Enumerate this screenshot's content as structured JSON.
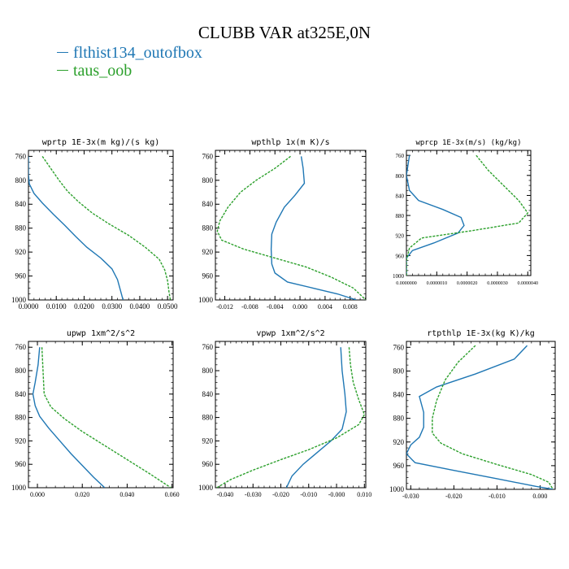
{
  "figure_title": "CLUBB VAR at325E,0N",
  "colors": {
    "blue": "#1f77b4",
    "green": "#2ca02c",
    "axis": "#000000"
  },
  "legend": [
    {
      "label": "flthist134_outofbox",
      "color": "#1f77b4",
      "dashed": false
    },
    {
      "label": "taus_oob",
      "color": "#2ca02c",
      "dashed": true
    }
  ],
  "chart_data": [
    {
      "type": "line",
      "title": "wprtp  1E-3x(m kg)/(s kg)",
      "xlim": [
        0.0,
        0.052
      ],
      "ylim": [
        1000,
        750
      ],
      "y_reversed": true,
      "x_ticks": [
        0.0,
        0.01,
        0.02,
        0.03,
        0.04,
        0.05
      ],
      "x_tick_labels": [
        "0.0000",
        "0.0100",
        "0.0200",
        "0.0300",
        "0.0400",
        "0.0500"
      ],
      "y_ticks": [
        760,
        800,
        840,
        880,
        920,
        960,
        1000
      ],
      "series": [
        {
          "name": "flthist134_outofbox",
          "color": "#1f77b4",
          "dashed": false,
          "points": [
            [
              0.0,
              760
            ],
            [
              0.0,
              790
            ],
            [
              0.0003,
              806
            ],
            [
              0.002,
              822
            ],
            [
              0.005,
              838
            ],
            [
              0.009,
              857
            ],
            [
              0.013,
              875
            ],
            [
              0.017,
              894
            ],
            [
              0.021,
              912
            ],
            [
              0.026,
              930
            ],
            [
              0.03,
              948
            ],
            [
              0.032,
              966
            ],
            [
              0.033,
              983
            ],
            [
              0.034,
              1000
            ]
          ]
        },
        {
          "name": "taus_oob",
          "color": "#2ca02c",
          "dashed": true,
          "points": [
            [
              0.005,
              760
            ],
            [
              0.008,
              780
            ],
            [
              0.011,
              800
            ],
            [
              0.014,
              818
            ],
            [
              0.018,
              836
            ],
            [
              0.023,
              855
            ],
            [
              0.029,
              873
            ],
            [
              0.036,
              892
            ],
            [
              0.042,
              912
            ],
            [
              0.047,
              932
            ],
            [
              0.049,
              950
            ],
            [
              0.05,
              968
            ],
            [
              0.0505,
              986
            ],
            [
              0.051,
              1000
            ]
          ]
        }
      ]
    },
    {
      "type": "line",
      "title": "wpthlp  1x(m K)/s",
      "xlim": [
        -0.0135,
        0.0105
      ],
      "ylim": [
        1000,
        750
      ],
      "y_reversed": true,
      "x_ticks": [
        -0.012,
        -0.008,
        -0.004,
        0.0,
        0.004,
        0.008
      ],
      "x_tick_labels": [
        "-0.012",
        "-0.008",
        "-0.004",
        "0.000",
        "0.004",
        "0.008"
      ],
      "y_ticks": [
        760,
        800,
        840,
        880,
        920,
        960,
        1000
      ],
      "series": [
        {
          "name": "flthist134_outofbox",
          "color": "#1f77b4",
          "dashed": false,
          "points": [
            [
              0.0002,
              760
            ],
            [
              0.0005,
              780
            ],
            [
              0.0007,
              805
            ],
            [
              -0.0008,
              825
            ],
            [
              -0.0025,
              845
            ],
            [
              -0.0038,
              870
            ],
            [
              -0.0045,
              890
            ],
            [
              -0.0046,
              915
            ],
            [
              -0.0045,
              940
            ],
            [
              -0.004,
              955
            ],
            [
              -0.002,
              970
            ],
            [
              0.002,
              980
            ],
            [
              0.006,
              990
            ],
            [
              0.009,
              1000
            ]
          ]
        },
        {
          "name": "taus_oob",
          "color": "#2ca02c",
          "dashed": true,
          "points": [
            [
              -0.0015,
              760
            ],
            [
              -0.004,
              780
            ],
            [
              -0.007,
              800
            ],
            [
              -0.0095,
              820
            ],
            [
              -0.0115,
              845
            ],
            [
              -0.0128,
              868
            ],
            [
              -0.0132,
              885
            ],
            [
              -0.0125,
              900
            ],
            [
              -0.009,
              915
            ],
            [
              -0.004,
              930
            ],
            [
              0.001,
              945
            ],
            [
              0.005,
              962
            ],
            [
              0.0085,
              980
            ],
            [
              0.0105,
              1000
            ]
          ]
        }
      ]
    },
    {
      "type": "line",
      "title": "wprcp  1E-3x(m/s) (kg/kg)",
      "xlim": [
        0.0,
        4.1e-06
      ],
      "ylim": [
        1000,
        750
      ],
      "y_reversed": true,
      "x_ticks": [
        0.0,
        1e-06,
        2e-06,
        3e-06,
        4e-06
      ],
      "x_tick_labels": [
        "0.0000000",
        "0.0000010",
        "0.0000020",
        "0.0000030",
        "0.0000040"
      ],
      "y_ticks": [
        760,
        800,
        840,
        880,
        920,
        960,
        1000
      ],
      "series": [
        {
          "name": "flthist134_outofbox",
          "color": "#1f77b4",
          "dashed": false,
          "points": [
            [
              1e-07,
              760
            ],
            [
              0.0,
              800
            ],
            [
              1e-07,
              830
            ],
            [
              4e-07,
              850
            ],
            [
              1.2e-06,
              868
            ],
            [
              1.8e-06,
              884
            ],
            [
              1.9e-06,
              900
            ],
            [
              1.7e-06,
              915
            ],
            [
              9e-07,
              935
            ],
            [
              2e-07,
              950
            ],
            [
              0.0,
              965
            ],
            [
              0.0,
              1000
            ]
          ]
        },
        {
          "name": "taus_oob",
          "color": "#2ca02c",
          "dashed": true,
          "points": [
            [
              2.3e-06,
              760
            ],
            [
              2.7e-06,
              790
            ],
            [
              3.2e-06,
              820
            ],
            [
              3.7e-06,
              850
            ],
            [
              4e-06,
              875
            ],
            [
              3.7e-06,
              895
            ],
            [
              2.2e-06,
              910
            ],
            [
              5e-07,
              925
            ],
            [
              1e-07,
              945
            ],
            [
              0.0,
              970
            ],
            [
              0.0,
              1000
            ]
          ]
        }
      ]
    },
    {
      "type": "line",
      "title": "upwp  1xm^2/s^2",
      "xlim": [
        -0.004,
        0.0605
      ],
      "ylim": [
        1000,
        750
      ],
      "y_reversed": true,
      "x_ticks": [
        0.0,
        0.02,
        0.04,
        0.06
      ],
      "x_tick_labels": [
        "0.000",
        "0.020",
        "0.040",
        "0.060"
      ],
      "y_ticks": [
        760,
        800,
        840,
        880,
        920,
        960,
        1000
      ],
      "series": [
        {
          "name": "flthist134_outofbox",
          "color": "#1f77b4",
          "dashed": false,
          "points": [
            [
              0.001,
              760
            ],
            [
              0.0003,
              790
            ],
            [
              -0.001,
              820
            ],
            [
              -0.002,
              840
            ],
            [
              -0.001,
              860
            ],
            [
              0.001,
              878
            ],
            [
              0.005,
              898
            ],
            [
              0.01,
              920
            ],
            [
              0.015,
              942
            ],
            [
              0.02,
              962
            ],
            [
              0.025,
              982
            ],
            [
              0.03,
              1000
            ]
          ]
        },
        {
          "name": "taus_oob",
          "color": "#2ca02c",
          "dashed": true,
          "points": [
            [
              0.002,
              760
            ],
            [
              0.0025,
              800
            ],
            [
              0.003,
              840
            ],
            [
              0.006,
              862
            ],
            [
              0.012,
              882
            ],
            [
              0.02,
              904
            ],
            [
              0.03,
              928
            ],
            [
              0.04,
              952
            ],
            [
              0.05,
              976
            ],
            [
              0.0595,
              1000
            ]
          ]
        }
      ]
    },
    {
      "type": "line",
      "title": "vpwp  1xm^2/s^2",
      "xlim": [
        -0.0435,
        0.0105
      ],
      "ylim": [
        1000,
        750
      ],
      "y_reversed": true,
      "x_ticks": [
        -0.04,
        -0.03,
        -0.02,
        -0.01,
        0.0,
        0.01
      ],
      "x_tick_labels": [
        "-0.040",
        "-0.030",
        "-0.020",
        "-0.010",
        "-0.000",
        "0.010"
      ],
      "y_ticks": [
        760,
        800,
        840,
        880,
        920,
        960,
        1000
      ],
      "series": [
        {
          "name": "flthist134_outofbox",
          "color": "#1f77b4",
          "dashed": false,
          "points": [
            [
              0.0015,
              760
            ],
            [
              0.002,
              800
            ],
            [
              0.003,
              840
            ],
            [
              0.0035,
              870
            ],
            [
              0.002,
              900
            ],
            [
              -0.002,
              920
            ],
            [
              -0.007,
              940
            ],
            [
              -0.012,
              960
            ],
            [
              -0.016,
              980
            ],
            [
              -0.018,
              1000
            ]
          ]
        },
        {
          "name": "taus_oob",
          "color": "#2ca02c",
          "dashed": true,
          "points": [
            [
              0.0045,
              760
            ],
            [
              0.005,
              790
            ],
            [
              0.006,
              820
            ],
            [
              0.008,
              850
            ],
            [
              0.01,
              875
            ],
            [
              0.008,
              892
            ],
            [
              0.0,
              915
            ],
            [
              -0.01,
              935
            ],
            [
              -0.02,
              952
            ],
            [
              -0.03,
              970
            ],
            [
              -0.038,
              986
            ],
            [
              -0.043,
              1000
            ]
          ]
        }
      ]
    },
    {
      "type": "line",
      "title": "rtpthlp  1E-3x(kg K)/kg",
      "xlim": [
        -0.031,
        0.0035
      ],
      "ylim": [
        1000,
        750
      ],
      "y_reversed": true,
      "x_ticks": [
        -0.03,
        -0.02,
        -0.01,
        0.0
      ],
      "x_tick_labels": [
        "-0.030",
        "-0.020",
        "-0.010",
        "0.000"
      ],
      "y_ticks": [
        760,
        800,
        840,
        880,
        920,
        960,
        1000
      ],
      "series": [
        {
          "name": "flthist134_outofbox",
          "color": "#1f77b4",
          "dashed": false,
          "points": [
            [
              -0.003,
              757
            ],
            [
              -0.006,
              780
            ],
            [
              -0.015,
              805
            ],
            [
              -0.024,
              827
            ],
            [
              -0.028,
              843
            ],
            [
              -0.027,
              870
            ],
            [
              -0.027,
              895
            ],
            [
              -0.028,
              912
            ],
            [
              -0.03,
              925
            ],
            [
              -0.031,
              940
            ],
            [
              -0.029,
              955
            ],
            [
              -0.02,
              968
            ],
            [
              -0.01,
              982
            ],
            [
              -0.001,
              995
            ],
            [
              0.003,
              1000
            ]
          ]
        },
        {
          "name": "taus_oob",
          "color": "#2ca02c",
          "dashed": true,
          "points": [
            [
              -0.015,
              757
            ],
            [
              -0.019,
              785
            ],
            [
              -0.022,
              815
            ],
            [
              -0.024,
              850
            ],
            [
              -0.025,
              880
            ],
            [
              -0.025,
              905
            ],
            [
              -0.023,
              922
            ],
            [
              -0.018,
              940
            ],
            [
              -0.01,
              958
            ],
            [
              -0.002,
              975
            ],
            [
              0.002,
              988
            ],
            [
              0.003,
              1000
            ]
          ]
        }
      ]
    }
  ]
}
